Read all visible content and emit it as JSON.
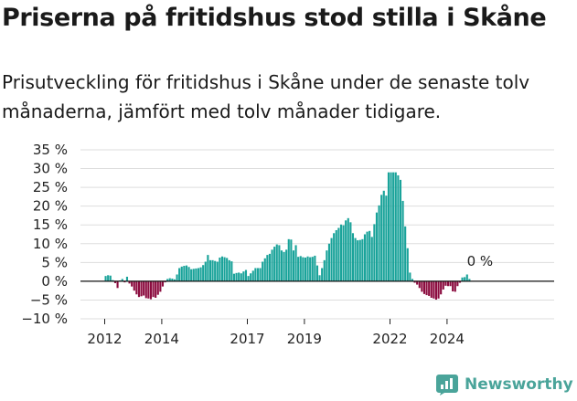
{
  "title": "Priserna på fritidshus stod stilla i Skåne",
  "subtitle": "Prisutveckling för fritidshus i Skåne under de senaste tolv månaderna, jämfört med tolv månader tidigare.",
  "brand": {
    "name": "Newsworthy",
    "icon": "newsworthy-logo-icon"
  },
  "colors": {
    "positive": "#1aa39a",
    "negative": "#8b0c3f",
    "grid": "#dddddd",
    "zero_line": "#111111"
  },
  "chart_data": {
    "type": "bar",
    "unit": "%",
    "x_start": "2012-01",
    "x_end": "2024-12",
    "xtick_labels": [
      "2012",
      "2014",
      "2017",
      "2019",
      "2022",
      "2024"
    ],
    "xtick_years": [
      2012,
      2014,
      2017,
      2019,
      2022,
      2024
    ],
    "ylim": [
      -10,
      35
    ],
    "yticks": [
      -10,
      -5,
      0,
      5,
      10,
      15,
      20,
      25,
      30,
      35
    ],
    "ytick_labels": [
      "−10 %",
      "−5 %",
      "0 %",
      "5 %",
      "10 %",
      "15 %",
      "20 %",
      "25 %",
      "30 %",
      "35 %"
    ],
    "grid": true,
    "end_label": "0 %",
    "values": [
      1.4,
      1.6,
      1.5,
      0.3,
      -0.5,
      -1.8,
      0.2,
      0.6,
      -0.3,
      1.2,
      -0.6,
      -1.4,
      -2.5,
      -3.5,
      -4.2,
      -4.0,
      -3.8,
      -4.5,
      -4.6,
      -4.8,
      -4.2,
      -4.4,
      -3.6,
      -2.8,
      -1.4,
      -0.3,
      0.6,
      0.8,
      0.7,
      0.5,
      1.8,
      3.5,
      3.9,
      4.1,
      4.2,
      3.8,
      3.2,
      3.3,
      3.4,
      3.5,
      3.7,
      4.3,
      5.2,
      7.0,
      5.6,
      5.6,
      5.4,
      5.2,
      6.3,
      6.6,
      6.4,
      6.2,
      5.6,
      5.3,
      2.0,
      2.2,
      2.3,
      2.1,
      2.6,
      3.0,
      1.4,
      2.1,
      2.8,
      3.5,
      3.5,
      3.5,
      5.2,
      6.1,
      7.0,
      7.3,
      8.4,
      9.2,
      9.8,
      9.6,
      8.2,
      7.8,
      8.4,
      11.2,
      11.1,
      8.2,
      9.6,
      6.5,
      6.7,
      6.4,
      6.3,
      6.6,
      6.4,
      6.5,
      6.8,
      4.2,
      1.6,
      3.5,
      5.6,
      8.2,
      10.0,
      11.5,
      12.8,
      13.6,
      14.2,
      15.1,
      14.9,
      16.2,
      16.8,
      15.7,
      12.8,
      11.5,
      10.9,
      11.0,
      11.2,
      12.5,
      13.2,
      13.4,
      11.8,
      15.2,
      18.3,
      20.2,
      23.0,
      24.1,
      22.8,
      29.0,
      29.0,
      29.0,
      29.0,
      28.2,
      27.0,
      21.4,
      14.6,
      8.8,
      2.3,
      0.6,
      -0.4,
      -0.9,
      -1.8,
      -2.8,
      -3.4,
      -3.7,
      -3.9,
      -4.4,
      -4.6,
      -4.9,
      -4.6,
      -3.5,
      -2.2,
      -1.2,
      -1.3,
      -1.3,
      -2.7,
      -2.8,
      -1.3,
      -0.4,
      1.0,
      1.1,
      1.8,
      0.6,
      0.0,
      0.0,
      0.0,
      0.0,
      0.0,
      0.0
    ]
  }
}
